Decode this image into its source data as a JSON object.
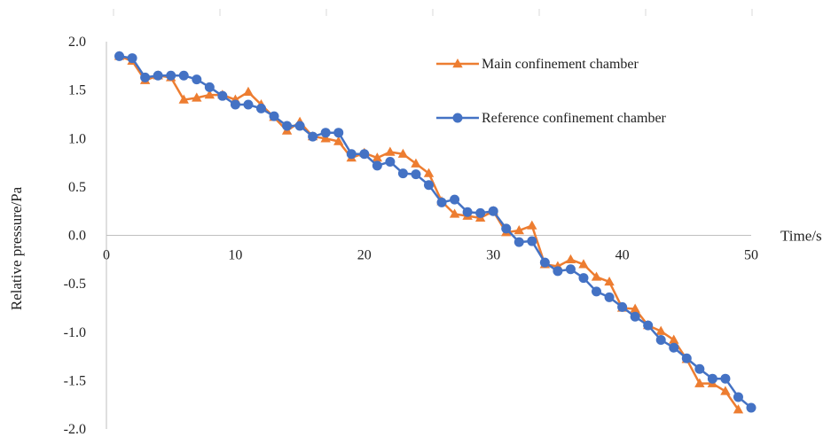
{
  "chart_data": {
    "type": "line",
    "title": "",
    "xlabel": "Time/s",
    "ylabel": "Relative pressure/Pa",
    "xlim": [
      0,
      50
    ],
    "ylim": [
      -2.0,
      2.0
    ],
    "xticks": [
      "0",
      "10",
      "20",
      "30",
      "40",
      "50"
    ],
    "yticks": [
      "2.0",
      "1.5",
      "1.0",
      "0.5",
      "0.0",
      "-0.5",
      "-1.0",
      "-1.5",
      "-2.0"
    ],
    "grid": false,
    "legend_position": "top-right",
    "series": [
      {
        "name": "Main confinement chamber",
        "color": "#ED7D31",
        "marker": "triangle",
        "x": [
          1,
          2,
          3,
          4,
          5,
          6,
          7,
          8,
          9,
          10,
          11,
          12,
          13,
          14,
          15,
          16,
          17,
          18,
          19,
          20,
          21,
          22,
          23,
          24,
          25,
          26,
          27,
          28,
          29,
          30,
          31,
          32,
          33,
          34,
          35,
          36,
          37,
          38,
          39,
          40,
          41,
          42,
          43,
          44,
          45,
          46,
          47,
          48,
          49
        ],
        "values": [
          1.85,
          1.8,
          1.6,
          1.65,
          1.63,
          1.4,
          1.42,
          1.45,
          1.45,
          1.4,
          1.48,
          1.35,
          1.22,
          1.08,
          1.17,
          1.02,
          1.0,
          0.97,
          0.8,
          0.85,
          0.8,
          0.86,
          0.84,
          0.74,
          0.64,
          0.35,
          0.22,
          0.2,
          0.18,
          0.25,
          0.03,
          0.05,
          0.1,
          -0.3,
          -0.32,
          -0.25,
          -0.3,
          -0.43,
          -0.48,
          -0.75,
          -0.76,
          -0.93,
          -0.99,
          -1.08,
          -1.28,
          -1.53,
          -1.53,
          -1.61,
          -1.8
        ]
      },
      {
        "name": "Reference confinement chamber",
        "color": "#4472C4",
        "marker": "circle",
        "x": [
          1,
          2,
          3,
          4,
          5,
          6,
          7,
          8,
          9,
          10,
          11,
          12,
          13,
          14,
          15,
          16,
          17,
          18,
          19,
          20,
          21,
          22,
          23,
          24,
          25,
          26,
          27,
          28,
          29,
          30,
          31,
          32,
          33,
          34,
          35,
          36,
          37,
          38,
          39,
          40,
          41,
          42,
          43,
          44,
          45,
          46,
          47,
          48,
          49,
          50
        ],
        "values": [
          1.85,
          1.83,
          1.63,
          1.65,
          1.65,
          1.65,
          1.61,
          1.53,
          1.44,
          1.35,
          1.35,
          1.31,
          1.23,
          1.13,
          1.13,
          1.02,
          1.06,
          1.06,
          0.84,
          0.84,
          0.72,
          0.76,
          0.64,
          0.63,
          0.52,
          0.34,
          0.37,
          0.24,
          0.23,
          0.25,
          0.07,
          -0.07,
          -0.06,
          -0.28,
          -0.37,
          -0.35,
          -0.44,
          -0.58,
          -0.64,
          -0.74,
          -0.84,
          -0.93,
          -1.08,
          -1.16,
          -1.27,
          -1.38,
          -1.48,
          -1.48,
          -1.67,
          -1.78
        ]
      }
    ]
  }
}
